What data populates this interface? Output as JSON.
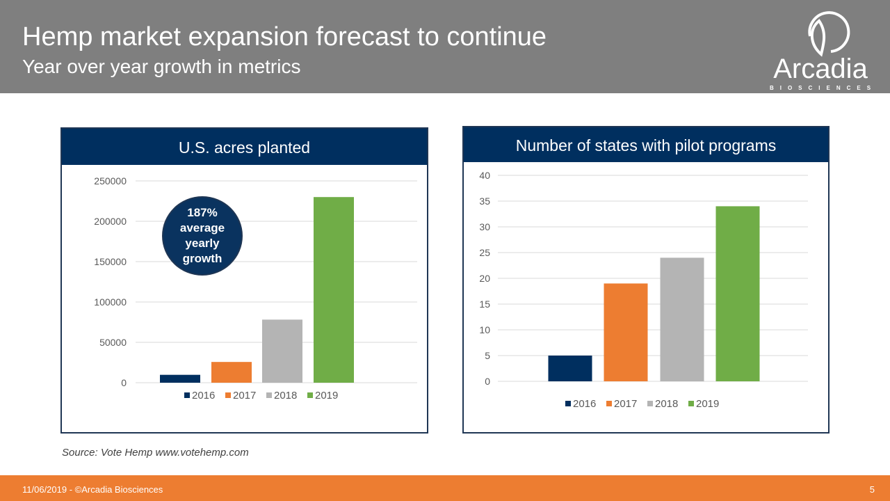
{
  "header": {
    "title": "Hemp market expansion forecast to continue",
    "subtitle": "Year over year growth in metrics",
    "logo": {
      "name": "Arcadia",
      "tagline": "BIOSCIENCES"
    }
  },
  "callout": {
    "lines": [
      "187%",
      "average",
      "yearly",
      "growth"
    ]
  },
  "source": "Source:  Vote Hemp www.votehemp.com",
  "footer": {
    "left": "11/06/2019 - ©Arcadia Biosciences",
    "page": "5"
  },
  "colors": {
    "2016": "#002f5f",
    "2017": "#ed7d31",
    "2018": "#b4b4b4",
    "2019": "#70ad47"
  },
  "chart_data": [
    {
      "type": "bar",
      "title": "U.S. acres planted",
      "categories": [
        "2016",
        "2017",
        "2018",
        "2019"
      ],
      "values": [
        9770,
        25713,
        78176,
        230000
      ],
      "ylim": [
        0,
        250000
      ],
      "yticks": [
        0,
        50000,
        100000,
        150000,
        200000,
        250000
      ],
      "grid": true,
      "legend": "bottom"
    },
    {
      "type": "bar",
      "title": "Number of states with pilot programs",
      "categories": [
        "2016",
        "2017",
        "2018",
        "2019"
      ],
      "values": [
        5,
        19,
        24,
        34
      ],
      "ylim": [
        0,
        40
      ],
      "yticks": [
        0,
        5,
        10,
        15,
        20,
        25,
        30,
        35,
        40
      ],
      "grid": true,
      "legend": "bottom"
    }
  ]
}
